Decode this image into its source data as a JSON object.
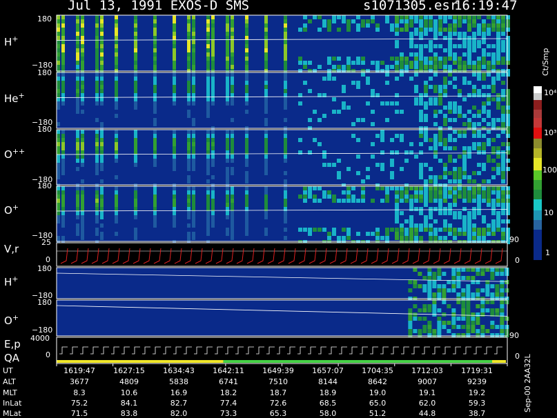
{
  "header": {
    "date_instrument": "Jul 13, 1991   EXOS-D SMS",
    "file": "s1071305.esr",
    "time": "16:19:47"
  },
  "colors": {
    "background": "#000000",
    "low": "#0a2a8a",
    "cyan": "#19b4c8",
    "green": "#2e9a2e",
    "yellow": "#e6e628",
    "red": "#d21414",
    "frame": "#ffffff",
    "velocity_trace": "#e02020",
    "qa_yellow": "#f0e628",
    "qa_green": "#46d246"
  },
  "colorbar": {
    "unit": "Ct/Smp",
    "ticks": [
      "10⁴",
      "10³",
      "100",
      "10",
      "1"
    ]
  },
  "chart_data": {
    "type": "heatmap",
    "panels": [
      {
        "label": "H",
        "charge": "+",
        "y_top": "180",
        "y_bottom": "−180"
      },
      {
        "label": "He",
        "charge": "+",
        "y_top": "180",
        "y_bottom": "−180"
      },
      {
        "label": "O",
        "charge": "++",
        "y_top": "180",
        "y_bottom": "−180"
      },
      {
        "label": "O",
        "charge": "+",
        "y_top": "180",
        "y_bottom": "−180"
      },
      {
        "label": "V,r",
        "charge": "",
        "y_top": "25",
        "y_bottom": "0",
        "right_top": "90",
        "right_bottom": "0"
      },
      {
        "label": "H",
        "charge": "+",
        "y_top": "180",
        "y_bottom": "−180"
      },
      {
        "label": "O",
        "charge": "+",
        "y_top": "180",
        "y_bottom": "−180",
        "right_bottom": "90"
      },
      {
        "label": "E,p",
        "label2": "QA",
        "charge": "",
        "y_top": "4000",
        "y_bottom": "0",
        "right_bottom": "0"
      }
    ],
    "x_axis": {
      "rows": [
        {
          "name": "UT",
          "values": [
            "1619:47",
            "1627:15",
            "1634:43",
            "1642:11",
            "1649:39",
            "1657:07",
            "1704:35",
            "1712:03",
            "1719:31"
          ]
        },
        {
          "name": "ALT",
          "values": [
            "3677",
            "4809",
            "5838",
            "6741",
            "7510",
            "8144",
            "8642",
            "9007",
            "9239"
          ]
        },
        {
          "name": "MLT",
          "values": [
            "8.3",
            "10.6",
            "16.9",
            "18.2",
            "18.7",
            "18.9",
            "19.0",
            "19.1",
            "19.2"
          ]
        },
        {
          "name": "InLat",
          "values": [
            "75.2",
            "84.1",
            "82.7",
            "77.4",
            "72.6",
            "68.5",
            "65.0",
            "62.0",
            "59.3"
          ]
        },
        {
          "name": "MLat",
          "values": [
            "71.5",
            "83.8",
            "82.0",
            "73.3",
            "65.3",
            "58.0",
            "51.2",
            "44.8",
            "38.7"
          ]
        }
      ]
    },
    "footer_version": "Sep-00 2AA32L"
  }
}
